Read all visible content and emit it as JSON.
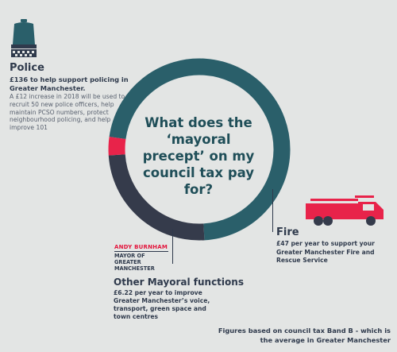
{
  "police": {
    "title": "Police",
    "amount": "£136 to help support policing in Greater Manchester.",
    "description": "A £12 increase in 2018 will be used to recruit 50 new police officers, help maintain PCSO numbers, protect neighbourhood policing, and help improve 101"
  },
  "center_question": "What does the ‘mayoral precept’ on my council tax pay for?",
  "fire": {
    "title": "Fire",
    "description": "£47 per year to support your Greater Manchester Fire and Rescue Service"
  },
  "other": {
    "title": "Other Mayoral functions",
    "description": "£6.22 per year to improve Greater Manchester’s voice, transport, green space and town centres"
  },
  "logo": {
    "name": "ANDY BURNHAM",
    "role": "MAYOR OF GREATER MANCHESTER"
  },
  "footnote": "Figures based on council tax Band B - which is the average in Greater Manchester",
  "colors": {
    "police": "#2a5f6a",
    "fire": "#353b4b",
    "other": "#e8234a",
    "background": "#e3e5e4"
  },
  "chart_data": {
    "type": "pie",
    "variant": "donut",
    "unit": "£ per year",
    "slices": [
      {
        "label": "Police",
        "value": 136,
        "color": "#2a5f6a"
      },
      {
        "label": "Fire",
        "value": 47,
        "color": "#353b4b"
      },
      {
        "label": "Other Mayoral functions",
        "value": 6.22,
        "color": "#e8234a"
      }
    ]
  }
}
